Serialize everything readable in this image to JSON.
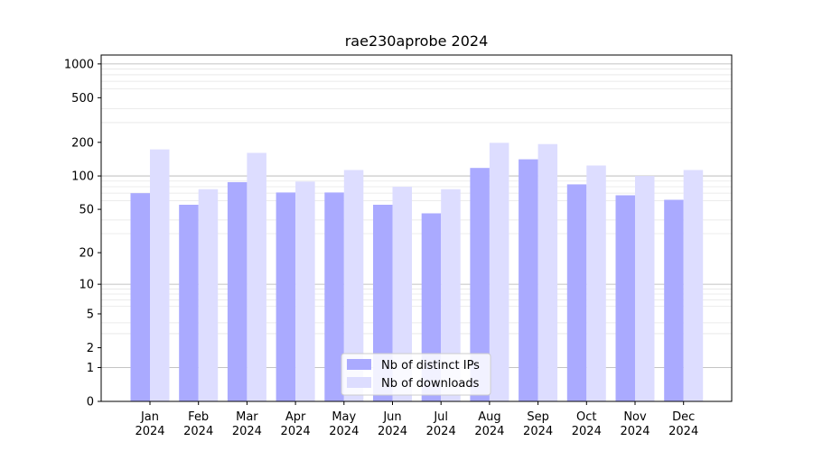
{
  "chart_data": {
    "type": "bar",
    "title": "rae230aprobe 2024",
    "xlabel": "",
    "ylabel": "",
    "yscale": "log1p",
    "ylim": [
      0,
      1200
    ],
    "y_ticks": [
      0,
      1,
      2,
      5,
      10,
      20,
      50,
      100,
      200,
      500,
      1000
    ],
    "categories": [
      [
        "Jan",
        "2024"
      ],
      [
        "Feb",
        "2024"
      ],
      [
        "Mar",
        "2024"
      ],
      [
        "Apr",
        "2024"
      ],
      [
        "May",
        "2024"
      ],
      [
        "Jun",
        "2024"
      ],
      [
        "Jul",
        "2024"
      ],
      [
        "Aug",
        "2024"
      ],
      [
        "Sep",
        "2024"
      ],
      [
        "Oct",
        "2024"
      ],
      [
        "Nov",
        "2024"
      ],
      [
        "Dec",
        "2024"
      ]
    ],
    "series": [
      {
        "name": "Nb of distinct IPs",
        "color": "#aaaaff",
        "values": [
          70,
          55,
          88,
          71,
          71,
          55,
          46,
          118,
          141,
          84,
          67,
          61
        ]
      },
      {
        "name": "Nb of downloads",
        "color": "#ddddff",
        "values": [
          173,
          76,
          161,
          89,
          113,
          80,
          76,
          198,
          193,
          124,
          100,
          113
        ]
      }
    ],
    "grid": true,
    "legend_position": "bottom-center"
  }
}
